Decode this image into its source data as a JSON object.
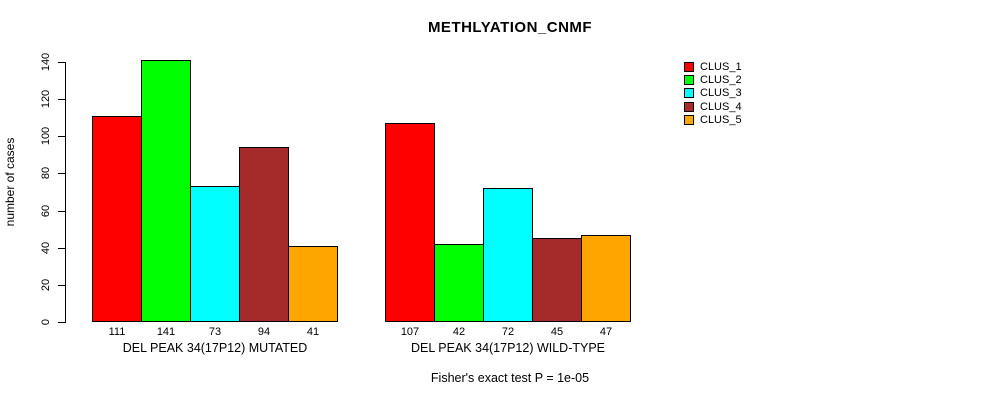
{
  "chart_data": {
    "type": "bar",
    "title": "METHLYATION_CNMF",
    "ylabel": "number of cases",
    "xlabel": "",
    "ylim": [
      0,
      140
    ],
    "yticks": [
      0,
      20,
      40,
      60,
      80,
      100,
      120,
      140
    ],
    "grid": false,
    "legend_position": "right",
    "series_names": [
      "CLUS_1",
      "CLUS_2",
      "CLUS_3",
      "CLUS_4",
      "CLUS_5"
    ],
    "series_colors": [
      "#FF0000",
      "#00FF00",
      "#00FFFF",
      "#A52A2A",
      "#FFA500"
    ],
    "groups": [
      {
        "label": "DEL PEAK 34(17P12) MUTATED",
        "values": [
          111,
          141,
          73,
          94,
          41
        ]
      },
      {
        "label": "DEL PEAK 34(17P12) WILD-TYPE",
        "values": [
          107,
          42,
          72,
          45,
          47
        ]
      }
    ],
    "bar_value_labels_shown": true,
    "annotation": "Fisher's exact test P = 1e-05"
  }
}
